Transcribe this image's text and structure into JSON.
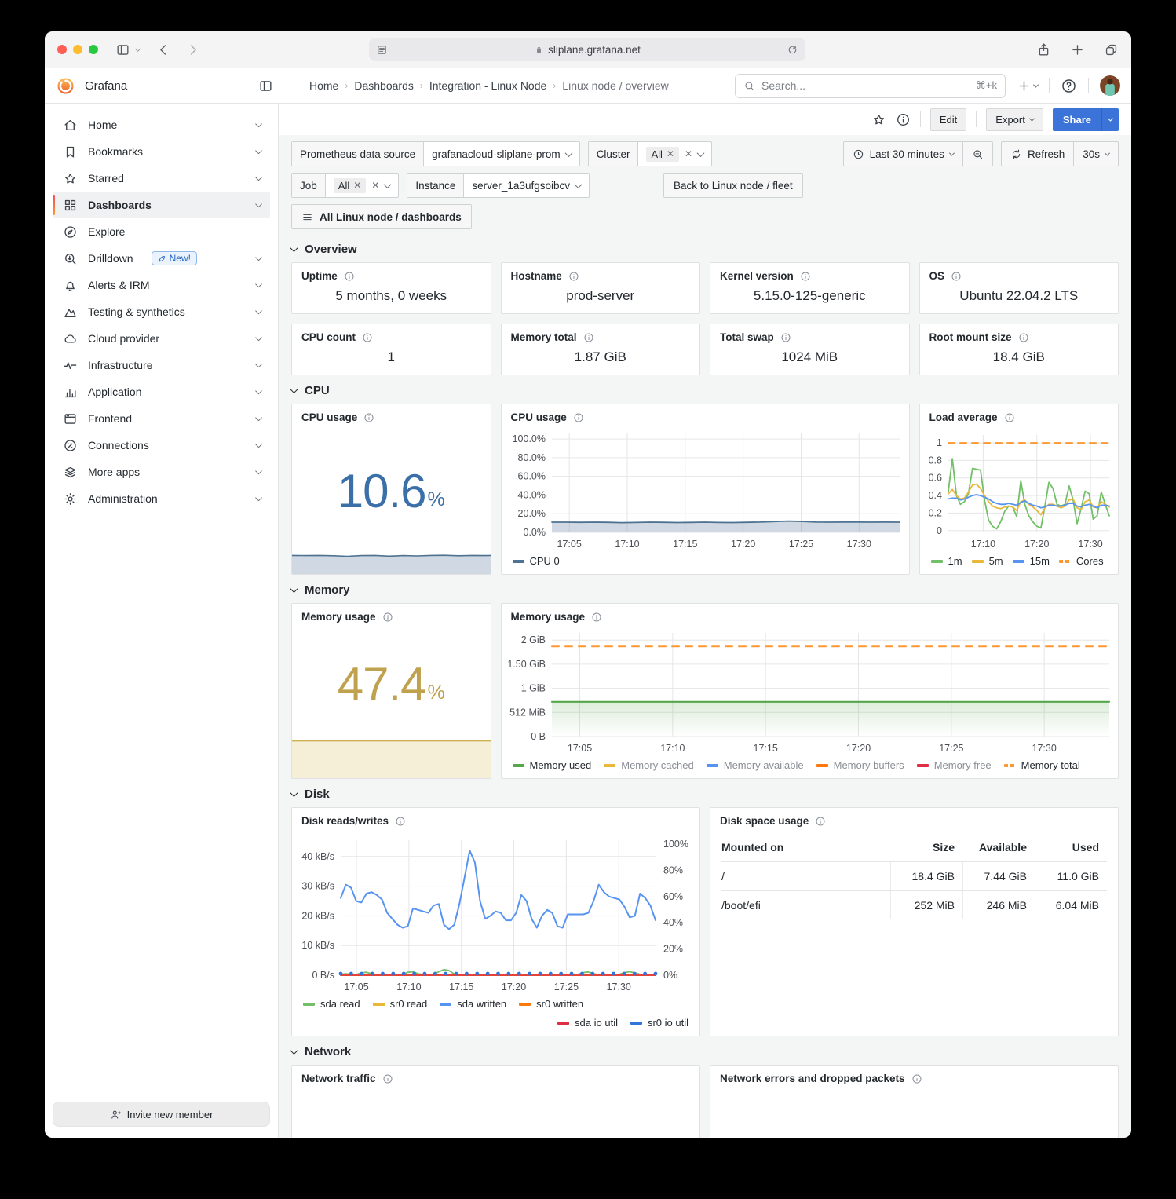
{
  "browser": {
    "url": "sliplane.grafana.net"
  },
  "header": {
    "brand": "Grafana",
    "breadcrumbs": [
      "Home",
      "Dashboards",
      "Integration - Linux Node",
      "Linux node / overview"
    ],
    "search": {
      "placeholder": "Search...",
      "shortcut": "⌘+k"
    }
  },
  "dash_toolbar": {
    "edit": "Edit",
    "export": "Export",
    "share": "Share"
  },
  "sidebar": {
    "items": [
      {
        "label": "Home",
        "icon": "home-icon",
        "chevron": true
      },
      {
        "label": "Bookmarks",
        "icon": "bookmark-icon",
        "chevron": true
      },
      {
        "label": "Starred",
        "icon": "star-icon",
        "chevron": true
      },
      {
        "label": "Dashboards",
        "icon": "dashboards-icon",
        "chevron": true,
        "active": true
      },
      {
        "label": "Explore",
        "icon": "compass-icon",
        "chevron": false
      },
      {
        "label": "Drilldown",
        "icon": "drilldown-icon",
        "chevron": true,
        "badge": "New!"
      },
      {
        "label": "Alerts & IRM",
        "icon": "bell-icon",
        "chevron": true
      },
      {
        "label": "Testing & synthetics",
        "icon": "k6-icon",
        "chevron": true
      },
      {
        "label": "Cloud provider",
        "icon": "cloud-icon",
        "chevron": true
      },
      {
        "label": "Infrastructure",
        "icon": "pulse-icon",
        "chevron": true
      },
      {
        "label": "Application",
        "icon": "bar-chart-icon",
        "chevron": true
      },
      {
        "label": "Frontend",
        "icon": "browser-icon",
        "chevron": true
      },
      {
        "label": "Connections",
        "icon": "connections-icon",
        "chevron": true
      },
      {
        "label": "More apps",
        "icon": "layers-icon",
        "chevron": true
      },
      {
        "label": "Administration",
        "icon": "gear-icon",
        "chevron": true
      }
    ],
    "invite": "Invite new member"
  },
  "filters": {
    "datasource": {
      "label": "Prometheus data source",
      "value": "grafanacloud-sliplane-prom"
    },
    "cluster": {
      "label": "Cluster",
      "value": "All"
    },
    "job": {
      "label": "Job",
      "value": "All"
    },
    "instance": {
      "label": "Instance",
      "value": "server_1a3ufgsoibcv"
    },
    "back_button": "Back to Linux node / fleet",
    "dashboards_button": "All Linux node / dashboards"
  },
  "time_controls": {
    "range": "Last 30 minutes",
    "refresh": "Refresh",
    "interval": "30s"
  },
  "sections": {
    "overview": "Overview",
    "cpu": "CPU",
    "memory": "Memory",
    "disk": "Disk",
    "network": "Network"
  },
  "overview_stats": [
    {
      "title": "Uptime",
      "value": "5 months, 0 weeks"
    },
    {
      "title": "Hostname",
      "value": "prod-server"
    },
    {
      "title": "Kernel version",
      "value": "5.15.0-125-generic"
    },
    {
      "title": "OS",
      "value": "Ubuntu 22.04.2 LTS"
    },
    {
      "title": "CPU count",
      "value": "1"
    },
    {
      "title": "Memory total",
      "value": "1.87 GiB"
    },
    {
      "title": "Total swap",
      "value": "1024 MiB"
    },
    {
      "title": "Root mount size",
      "value": "18.4 GiB"
    }
  ],
  "cpu_stat": {
    "title": "CPU usage",
    "value": "10.6",
    "unit": "%",
    "color": "#3a6fa7",
    "spark": {
      "values": [
        10.9,
        10.8,
        10.9,
        10.7,
        10.4,
        10.8,
        10.9,
        10.5,
        10.8,
        10.6,
        10.9,
        11.0,
        10.7,
        10.9,
        10.8,
        11.0,
        10.8,
        10.9
      ],
      "ymin": 0,
      "ymax": 12,
      "color": "#4e7291",
      "fill": "rgba(110,138,168,0.32)"
    }
  },
  "memory_stat": {
    "title": "Memory usage",
    "value": "47.4",
    "unit": "%",
    "color": "#bfa14e",
    "spark": {
      "values": [
        47.4,
        47.4
      ],
      "ymin": 0,
      "ymax": 50,
      "color": "#cdb255",
      "fill": "rgba(222,196,110,0.28)"
    }
  },
  "network_panels": [
    {
      "title": "Network traffic"
    },
    {
      "title": "Network errors and dropped packets"
    }
  ],
  "disk_table": {
    "title": "Disk space usage",
    "columns": [
      "Mounted on",
      "Size",
      "Available",
      "Used"
    ],
    "rows": [
      [
        "/",
        "18.4 GiB",
        "7.44 GiB",
        "11.0 GiB"
      ],
      [
        "/boot/efi",
        "252 MiB",
        "246 MiB",
        "6.04 MiB"
      ]
    ]
  },
  "chart_data": {
    "cpu": {
      "type": "line",
      "title": "CPU usage",
      "ymin": 0,
      "ymax": 106,
      "yticks": [
        {
          "label": "0.0%",
          "v": 0
        },
        {
          "label": "20.0%",
          "v": 20
        },
        {
          "label": "40.0%",
          "v": 40
        },
        {
          "label": "60.0%",
          "v": 60
        },
        {
          "label": "80.0%",
          "v": 80
        },
        {
          "label": "100.0%",
          "v": 100
        }
      ],
      "xticks": [
        {
          "label": "17:05",
          "f": 0.05
        },
        {
          "label": "17:10",
          "f": 0.2167
        },
        {
          "label": "17:15",
          "f": 0.3833
        },
        {
          "label": "17:20",
          "f": 0.55
        },
        {
          "label": "17:25",
          "f": 0.7167
        },
        {
          "label": "17:30",
          "f": 0.8833
        }
      ],
      "series": [
        {
          "name": "CPU 0",
          "color": "#4e7291",
          "width": 1.8,
          "fill": "rgba(110,138,168,0.32)",
          "values": [
            10.9,
            10.9,
            10.8,
            10.9,
            10.8,
            10.4,
            10.6,
            10.9,
            10.8,
            10.5,
            10.7,
            10.9,
            10.6,
            10.5,
            10.8,
            11.0,
            11.6,
            12.1,
            11.7,
            11.0,
            10.9,
            11.0,
            11.0,
            10.9,
            11.0,
            10.9
          ]
        }
      ],
      "legend": [
        {
          "label": "CPU 0",
          "color": "#4e7291"
        }
      ]
    },
    "load": {
      "type": "line",
      "title": "Load average",
      "ymin": -0.02,
      "ymax": 1.09,
      "yticks": [
        {
          "label": "0",
          "v": 0
        },
        {
          "label": "0.2",
          "v": 0.2
        },
        {
          "label": "0.4",
          "v": 0.4
        },
        {
          "label": "0.6",
          "v": 0.6
        },
        {
          "label": "0.8",
          "v": 0.8
        },
        {
          "label": "1",
          "v": 1
        }
      ],
      "xticks": [
        {
          "label": "17:10",
          "f": 0.2167
        },
        {
          "label": "17:20",
          "f": 0.55
        },
        {
          "label": "17:30",
          "f": 0.8833
        }
      ],
      "series": [
        {
          "name": "Cores",
          "color": "#ff9830",
          "width": 2,
          "dash": "8 7",
          "values": [
            1,
            1
          ]
        },
        {
          "name": "1m",
          "color": "#73bf69",
          "width": 1.8,
          "values": [
            0.45,
            0.82,
            0.4,
            0.3,
            0.33,
            0.42,
            0.71,
            0.7,
            0.69,
            0.35,
            0.12,
            0.05,
            0.02,
            0.1,
            0.22,
            0.28,
            0.27,
            0.16,
            0.57,
            0.3,
            0.17,
            0.1,
            0.05,
            0.03,
            0.28,
            0.55,
            0.48,
            0.3,
            0.28,
            0.3,
            0.51,
            0.35,
            0.08,
            0.25,
            0.45,
            0.42,
            0.13,
            0.17,
            0.44,
            0.3,
            0.17
          ]
        },
        {
          "name": "5m",
          "color": "#eab839",
          "width": 1.8,
          "values": [
            0.42,
            0.47,
            0.4,
            0.36,
            0.37,
            0.44,
            0.52,
            0.53,
            0.48,
            0.4,
            0.33,
            0.28,
            0.26,
            0.25,
            0.27,
            0.28,
            0.27,
            0.23,
            0.33,
            0.35,
            0.3,
            0.27,
            0.23,
            0.18,
            0.26,
            0.3,
            0.3,
            0.28,
            0.26,
            0.28,
            0.35,
            0.36,
            0.26,
            0.24,
            0.33,
            0.35,
            0.27,
            0.26,
            0.33,
            0.3,
            0.27
          ]
        },
        {
          "name": "15m",
          "color": "#5794f2",
          "width": 1.8,
          "values": [
            0.36,
            0.37,
            0.37,
            0.35,
            0.36,
            0.38,
            0.4,
            0.41,
            0.4,
            0.38,
            0.36,
            0.33,
            0.31,
            0.3,
            0.3,
            0.31,
            0.3,
            0.29,
            0.32,
            0.34,
            0.31,
            0.29,
            0.28,
            0.26,
            0.27,
            0.29,
            0.29,
            0.28,
            0.28,
            0.29,
            0.31,
            0.31,
            0.28,
            0.27,
            0.29,
            0.3,
            0.28,
            0.26,
            0.29,
            0.29,
            0.28
          ]
        }
      ],
      "legend": [
        {
          "label": "1m",
          "color": "#73bf69"
        },
        {
          "label": "5m",
          "color": "#eab839"
        },
        {
          "label": "15m",
          "color": "#5794f2"
        },
        {
          "label": "Cores",
          "color": "#ff9830",
          "dashed": true
        }
      ]
    },
    "memory": {
      "type": "line",
      "title": "Memory usage",
      "ymin": 0,
      "ymax": 2.15,
      "yticks": [
        {
          "label": "0 B",
          "v": 0
        },
        {
          "label": "512 MiB",
          "v": 0.5
        },
        {
          "label": "1 GiB",
          "v": 1
        },
        {
          "label": "1.50 GiB",
          "v": 1.5
        },
        {
          "label": "2 GiB",
          "v": 2
        }
      ],
      "xticks": [
        {
          "label": "17:05",
          "f": 0.05
        },
        {
          "label": "17:10",
          "f": 0.2167
        },
        {
          "label": "17:15",
          "f": 0.3833
        },
        {
          "label": "17:20",
          "f": 0.55
        },
        {
          "label": "17:25",
          "f": 0.7167
        },
        {
          "label": "17:30",
          "f": 0.8833
        }
      ],
      "series": [
        {
          "name": "Memory total",
          "color": "#ff9830",
          "width": 2,
          "dash": "9 8",
          "values": [
            1.87,
            1.87
          ]
        },
        {
          "name": "Memory used",
          "color": "#56a64b",
          "width": 2.2,
          "fill_gradient": [
            "rgba(86,166,75,0.20)",
            "rgba(86,166,75,0)"
          ],
          "values": [
            0.72,
            0.72
          ]
        }
      ],
      "legend": [
        {
          "label": "Memory used",
          "color": "#56a64b"
        },
        {
          "label": "Memory cached",
          "color": "#eab839",
          "muted": true
        },
        {
          "label": "Memory available",
          "color": "#5794f2",
          "muted": true
        },
        {
          "label": "Memory buffers",
          "color": "#ff780a",
          "muted": true
        },
        {
          "label": "Memory free",
          "color": "#e02f44",
          "muted": true
        },
        {
          "label": "Memory total",
          "color": "#ff9830",
          "dashed": true
        }
      ]
    },
    "disk": {
      "type": "line",
      "title": "Disk reads/writes",
      "ymin": 0,
      "ymax": 45.5,
      "ymax_right": 103,
      "yticks": [
        {
          "label": "0 B/s",
          "v": 0
        },
        {
          "label": "10 kB/s",
          "v": 10
        },
        {
          "label": "20 kB/s",
          "v": 20
        },
        {
          "label": "30 kB/s",
          "v": 30
        },
        {
          "label": "40 kB/s",
          "v": 40
        }
      ],
      "yticks_right": [
        {
          "label": "0%",
          "v": 0
        },
        {
          "label": "20%",
          "v": 20
        },
        {
          "label": "40%",
          "v": 40
        },
        {
          "label": "60%",
          "v": 60
        },
        {
          "label": "80%",
          "v": 80
        },
        {
          "label": "100%",
          "v": 100
        }
      ],
      "xticks": [
        {
          "label": "17:05",
          "f": 0.05
        },
        {
          "label": "17:10",
          "f": 0.2167
        },
        {
          "label": "17:15",
          "f": 0.3833
        },
        {
          "label": "17:20",
          "f": 0.55
        },
        {
          "label": "17:25",
          "f": 0.7167
        },
        {
          "label": "17:30",
          "f": 0.8833
        }
      ],
      "series": [
        {
          "name": "sda written",
          "color": "#5794f2",
          "width": 2,
          "values": [
            26,
            30.5,
            29.5,
            25,
            24.5,
            27.5,
            28,
            27,
            25.5,
            21,
            19,
            17,
            16,
            16.5,
            22.5,
            22,
            21.5,
            21,
            23.5,
            24,
            17,
            15.5,
            17,
            24,
            33,
            42,
            38,
            25,
            19,
            20,
            21.5,
            21,
            18.5,
            18.5,
            21,
            27,
            25,
            19,
            16,
            20,
            22,
            21,
            16.5,
            16,
            20.5,
            20.5,
            20.5,
            20.5,
            21,
            25,
            30.5,
            28,
            26.5,
            26,
            25.5,
            23,
            19.5,
            20,
            27.5,
            26,
            23.5,
            18.5
          ]
        },
        {
          "name": "sda read",
          "color": "#73bf69",
          "width": 1.8,
          "values": [
            0.3,
            0.5,
            0.3,
            0.2,
            0.8,
            1.0,
            0.5,
            0.2,
            0.2,
            0.2,
            0.2,
            0.2,
            0.3,
            1.0,
            1.2,
            0.5,
            0.2,
            0.2,
            0.3,
            1.2,
            1.9,
            1.6,
            0.4,
            0.2,
            0.2,
            0.2,
            0.2,
            0.2,
            0.2,
            0.2,
            0.2,
            0.2,
            0.2,
            0.2,
            0.2,
            0.2,
            0.2,
            0.2,
            0.2,
            0.2,
            0.2,
            0.2,
            0.2,
            0.2,
            0.2,
            0.2,
            0.3,
            0.9,
            1.1,
            0.5,
            0.2,
            0.2,
            0.2,
            0.2,
            0.3,
            0.9,
            1.2,
            0.8,
            0.3,
            0.2,
            0.2,
            0.2
          ]
        },
        {
          "name": "sr0 read",
          "color": "#eab839",
          "width": 1.6,
          "values": [
            0,
            0
          ]
        },
        {
          "name": "sr0 written",
          "color": "#ff780a",
          "width": 2,
          "values": [
            0,
            0
          ]
        },
        {
          "name": "sda io util",
          "color": "#e02f44",
          "width": 1.6,
          "axis": "right",
          "values": [
            0,
            0
          ]
        },
        {
          "name": "sr0 io util",
          "color": "#3274d9",
          "axis": "right",
          "points": true,
          "values": [
            0,
            0,
            0,
            0,
            0,
            0,
            0,
            0,
            0,
            0,
            0,
            0,
            0,
            0,
            0,
            0,
            0,
            0,
            0,
            0,
            0,
            0,
            0,
            0,
            0,
            0,
            0,
            0,
            0,
            0,
            0
          ]
        }
      ],
      "legend": [
        {
          "label": "sda read",
          "color": "#73bf69"
        },
        {
          "label": "sr0 read",
          "color": "#eab839"
        },
        {
          "label": "sda written",
          "color": "#5794f2"
        },
        {
          "label": "sr0 written",
          "color": "#ff780a"
        }
      ],
      "legend2": [
        {
          "label": "sda io util",
          "color": "#e02f44"
        },
        {
          "label": "sr0 io util",
          "color": "#3274d9"
        }
      ]
    }
  }
}
